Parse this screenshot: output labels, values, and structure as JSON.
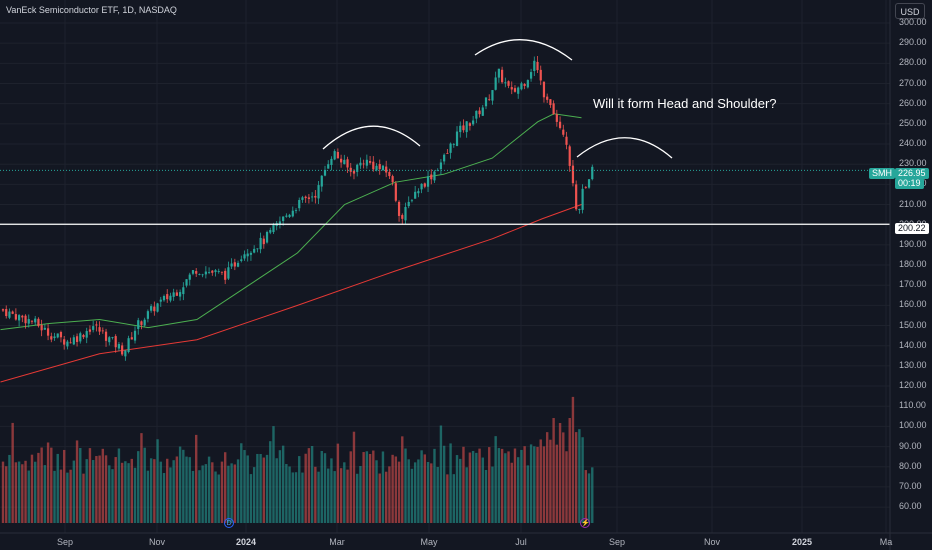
{
  "header": {
    "title": "VanEck Semiconductor ETF, 1D, NASDAQ",
    "currency": "USD"
  },
  "annotation": "Will it form Head and Shoulder?",
  "price_tag": {
    "symbol": "SMH",
    "price": "226.95",
    "countdown": "00:19"
  },
  "level_tag": "200.22",
  "events": {
    "dividend": "D",
    "flash": "⚡"
  },
  "colors": {
    "up": "#26a69a",
    "down": "#ef5350",
    "ma_fast": "#4caf50",
    "ma_slow": "#e53935",
    "background": "#131722"
  },
  "chart_data": {
    "type": "candlestick",
    "title": "VanEck Semiconductor ETF, 1D, NASDAQ",
    "y_axis": {
      "unit": "USD",
      "range": [
        50,
        300
      ],
      "ticks": [
        300,
        290,
        280,
        270,
        260,
        250,
        240,
        230,
        220,
        210,
        200,
        190,
        180,
        170,
        160,
        150,
        140,
        130,
        120,
        110,
        100,
        90,
        80,
        70,
        60
      ]
    },
    "x_axis": {
      "ticks": [
        "Sep",
        "Nov",
        "2024",
        "Mar",
        "May",
        "Jul",
        "Sep",
        "Nov",
        "2025",
        "Ma"
      ],
      "bold_ticks": [
        "2024",
        "2025"
      ]
    },
    "horizontal_line": 200.22,
    "last_price": 226.95,
    "price_path": [
      [
        "2023-08-16",
        158
      ],
      [
        "2023-08-25",
        155
      ],
      [
        "2023-09-05",
        152
      ],
      [
        "2023-09-15",
        146
      ],
      [
        "2023-09-26",
        142
      ],
      [
        "2023-10-04",
        145
      ],
      [
        "2023-10-12",
        150
      ],
      [
        "2023-10-24",
        142
      ],
      [
        "2023-10-31",
        137
      ],
      [
        "2023-11-08",
        150
      ],
      [
        "2023-11-20",
        160
      ],
      [
        "2023-12-04",
        168
      ],
      [
        "2023-12-14",
        178
      ],
      [
        "2024-01-02",
        175
      ],
      [
        "2024-01-12",
        186
      ],
      [
        "2024-01-25",
        192
      ],
      [
        "2024-02-06",
        203
      ],
      [
        "2024-02-15",
        210
      ],
      [
        "2024-02-27",
        216
      ],
      [
        "2024-03-05",
        232
      ],
      [
        "2024-03-08",
        236
      ],
      [
        "2024-03-19",
        226
      ],
      [
        "2024-03-27",
        232
      ],
      [
        "2024-04-05",
        228
      ],
      [
        "2024-04-12",
        225
      ],
      [
        "2024-04-19",
        202
      ],
      [
        "2024-04-26",
        215
      ],
      [
        "2024-05-08",
        225
      ],
      [
        "2024-05-17",
        235
      ],
      [
        "2024-05-23",
        245
      ],
      [
        "2024-06-03",
        253
      ],
      [
        "2024-06-11",
        262
      ],
      [
        "2024-06-18",
        275
      ],
      [
        "2024-06-26",
        265
      ],
      [
        "2024-07-05",
        272
      ],
      [
        "2024-07-10",
        281
      ],
      [
        "2024-07-17",
        262
      ],
      [
        "2024-07-24",
        250
      ],
      [
        "2024-07-30",
        238
      ],
      [
        "2024-08-02",
        225
      ],
      [
        "2024-08-05",
        203
      ],
      [
        "2024-08-08",
        215
      ],
      [
        "2024-08-15",
        226.95
      ]
    ],
    "volume_range": [
      0,
      130
    ],
    "moving_average_fast": [
      [
        "2023-08-16",
        148
      ],
      [
        "2023-09-15",
        151
      ],
      [
        "2023-10-16",
        153
      ],
      [
        "2023-11-15",
        149
      ],
      [
        "2023-12-15",
        153
      ],
      [
        "2024-01-16",
        170
      ],
      [
        "2024-02-15",
        186
      ],
      [
        "2024-03-15",
        210
      ],
      [
        "2024-04-15",
        221
      ],
      [
        "2024-05-15",
        225
      ],
      [
        "2024-06-14",
        233
      ],
      [
        "2024-07-12",
        251
      ],
      [
        "2024-07-22",
        255
      ],
      [
        "2024-08-08",
        253
      ]
    ],
    "moving_average_slow": [
      [
        "2023-08-16",
        122
      ],
      [
        "2023-10-16",
        136
      ],
      [
        "2023-12-15",
        143
      ],
      [
        "2024-02-15",
        160
      ],
      [
        "2024-04-15",
        177
      ],
      [
        "2024-06-14",
        193
      ],
      [
        "2024-07-15",
        203
      ],
      [
        "2024-08-08",
        210
      ]
    ],
    "head_and_shoulders_arcs": [
      "left-shoulder",
      "head",
      "right-shoulder"
    ]
  }
}
